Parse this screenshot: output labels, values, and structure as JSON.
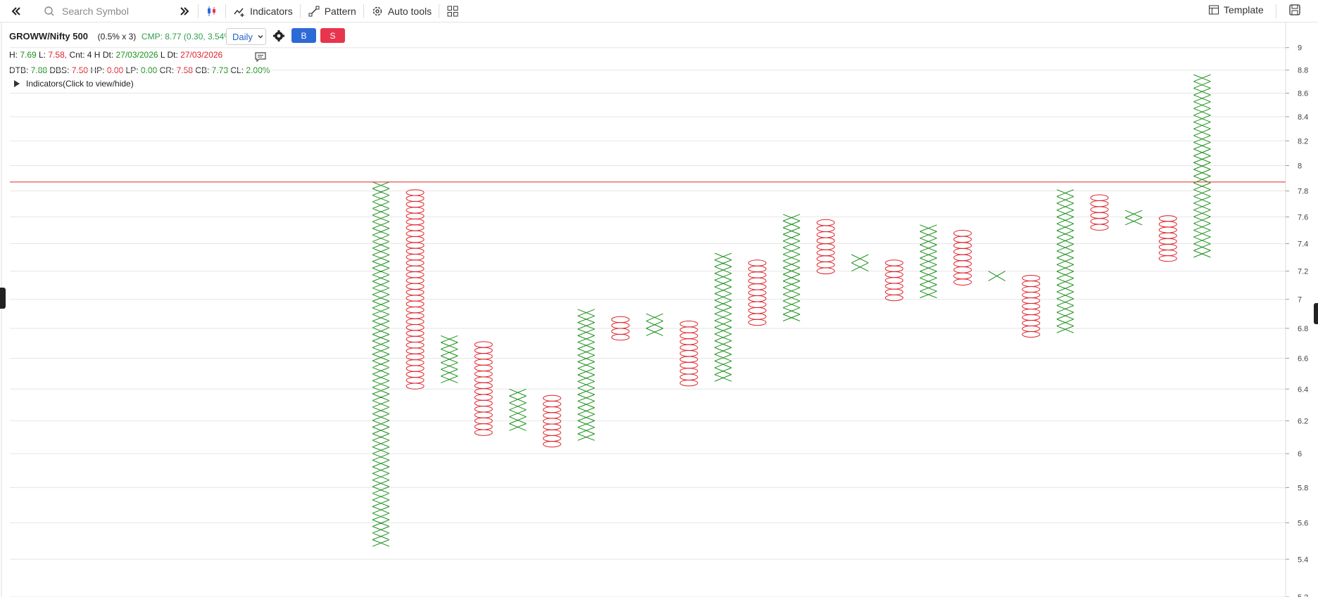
{
  "toolbar": {
    "search_placeholder": "Search Symbol",
    "indicators_label": "Indicators",
    "pattern_label": "Pattern",
    "auto_tools_label": "Auto tools",
    "template_label": "Template"
  },
  "header": {
    "symbol": "GROWW/Nifty 500",
    "box_info": "(0.5% x 3)",
    "cmp": "CMP: 8.77 (0.30, 3.54%)",
    "interval": "Daily",
    "buy_label": "B",
    "sell_label": "S"
  },
  "stats1": {
    "h_label": "H:",
    "h_value": "7.69",
    "l_label": "L:",
    "l_value": "7.58,",
    "cnt": "Cnt: 4 H",
    "hdt_label": "Dt:",
    "hdt_value": "27/03/2026",
    "ldt_label": "L Dt:",
    "ldt_value": "27/03/2026"
  },
  "stats2": {
    "dtb_label": "DTB:",
    "dtb_value": "7.88",
    "dbs_label": "DBS:",
    "dbs_value": "7.50",
    "hp_label": "HP:",
    "hp_value": "0.00",
    "lp_label": "LP:",
    "lp_value": "0.00",
    "cr_label": "CR:",
    "cr_value": "7.58",
    "cb_label": "CB:",
    "cb_value": "7.73",
    "cl_label": "CL:",
    "cl_value": "2.00%"
  },
  "indicators_toggle": "Indicators(Click to view/hide)",
  "colors": {
    "x": "#1a8f1a",
    "o": "#e0202a",
    "line": "#e04040",
    "grid": "#e6e6e6"
  },
  "chart_data": {
    "type": "point-and-figure",
    "box_size_pct": 0.5,
    "reversal": 3,
    "ylim": [
      5.2,
      9.1
    ],
    "y_ticks": [
      9,
      8.8,
      8.6,
      8.4,
      8.2,
      8,
      7.8,
      7.6,
      7.4,
      7.2,
      7,
      6.8,
      6.6,
      6.4,
      6.2,
      6,
      5.8,
      5.6,
      5.4,
      5.2
    ],
    "horizontal_line": 7.87,
    "columns": [
      {
        "type": "X",
        "low": 5.47,
        "high": 7.87
      },
      {
        "type": "O",
        "low": 6.4,
        "high": 7.81
      },
      {
        "type": "X",
        "low": 6.44,
        "high": 6.75
      },
      {
        "type": "O",
        "low": 6.11,
        "high": 6.71
      },
      {
        "type": "X",
        "low": 6.14,
        "high": 6.4
      },
      {
        "type": "O",
        "low": 6.04,
        "high": 6.36
      },
      {
        "type": "X",
        "low": 6.08,
        "high": 6.93
      },
      {
        "type": "O",
        "low": 6.72,
        "high": 6.88
      },
      {
        "type": "X",
        "low": 6.75,
        "high": 6.9
      },
      {
        "type": "O",
        "low": 6.42,
        "high": 6.85
      },
      {
        "type": "X",
        "low": 6.45,
        "high": 7.33
      },
      {
        "type": "O",
        "low": 6.82,
        "high": 7.28
      },
      {
        "type": "X",
        "low": 6.85,
        "high": 7.62
      },
      {
        "type": "O",
        "low": 7.18,
        "high": 7.58
      },
      {
        "type": "X",
        "low": 7.2,
        "high": 7.32
      },
      {
        "type": "O",
        "low": 6.99,
        "high": 7.28
      },
      {
        "type": "X",
        "low": 7.01,
        "high": 7.54
      },
      {
        "type": "O",
        "low": 7.1,
        "high": 7.5
      },
      {
        "type": "X",
        "low": 7.13,
        "high": 7.2
      },
      {
        "type": "O",
        "low": 6.74,
        "high": 7.17
      },
      {
        "type": "X",
        "low": 6.77,
        "high": 7.81
      },
      {
        "type": "O",
        "low": 7.5,
        "high": 7.77
      },
      {
        "type": "X",
        "low": 7.54,
        "high": 7.65
      },
      {
        "type": "O",
        "low": 7.27,
        "high": 7.61
      },
      {
        "type": "X",
        "low": 7.3,
        "high": 8.76
      }
    ]
  }
}
